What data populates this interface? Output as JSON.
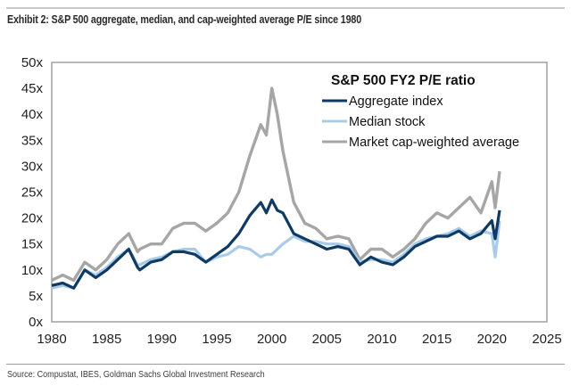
{
  "header": {
    "title": "Exhibit 2: S&P 500 aggregate, median, and cap-weighted average P/E since 1980"
  },
  "footer": {
    "source": "Source: Compustat, IBES, Goldman Sachs Global Investment Research"
  },
  "chart_data": {
    "type": "line",
    "title": "S&P 500 FY2 P/E ratio",
    "xlabel": "",
    "ylabel": "",
    "xlim": [
      1980,
      2025
    ],
    "ylim": [
      0,
      50
    ],
    "x_ticks": [
      1980,
      1985,
      1990,
      1995,
      2000,
      2005,
      2010,
      2015,
      2020,
      2025
    ],
    "x_tick_labels": [
      "1980",
      "1985",
      "1990",
      "1995",
      "2000",
      "2005",
      "2010",
      "2015",
      "2020",
      "2025"
    ],
    "y_ticks": [
      0,
      5,
      10,
      15,
      20,
      25,
      30,
      35,
      40,
      45,
      50
    ],
    "y_tick_labels": [
      "0x",
      "5x",
      "10x",
      "15x",
      "20x",
      "25x",
      "30x",
      "35x",
      "40x",
      "45x",
      "50x"
    ],
    "grid": false,
    "legend_position": "top-right",
    "x": [
      1980,
      1981,
      1982,
      1983,
      1984,
      1985,
      1986,
      1987,
      1987.8,
      1988,
      1989,
      1990,
      1991,
      1992,
      1993,
      1994,
      1995,
      1996,
      1997,
      1998,
      1999,
      1999.5,
      2000,
      2000.5,
      2001,
      2002,
      2003,
      2004,
      2005,
      2006,
      2007,
      2008,
      2009,
      2010,
      2011,
      2012,
      2013,
      2014,
      2015,
      2016,
      2017,
      2018,
      2019,
      2020,
      2020.3,
      2020.7
    ],
    "series": [
      {
        "name": "Aggregate index",
        "color": "#0f3a63",
        "values": [
          7.0,
          7.5,
          6.5,
          10.0,
          8.5,
          10.0,
          12.0,
          14.0,
          10.5,
          10.0,
          11.5,
          12.0,
          13.5,
          13.5,
          13.0,
          11.5,
          13.0,
          14.5,
          17.0,
          20.5,
          23.0,
          21.0,
          23.5,
          21.5,
          21.0,
          17.0,
          16.0,
          15.0,
          14.0,
          14.5,
          14.0,
          11.0,
          12.5,
          11.5,
          11.0,
          12.5,
          14.5,
          15.5,
          16.5,
          16.5,
          17.5,
          16.0,
          17.0,
          19.5,
          16.0,
          21.5
        ]
      },
      {
        "name": "Median stock",
        "color": "#a9cbea",
        "values": [
          6.5,
          7.0,
          6.5,
          10.0,
          9.0,
          10.5,
          12.5,
          14.0,
          11.0,
          11.0,
          12.0,
          12.5,
          13.5,
          14.0,
          14.0,
          11.5,
          12.5,
          13.0,
          14.5,
          14.0,
          12.5,
          13.0,
          13.0,
          14.0,
          15.0,
          16.5,
          15.5,
          15.5,
          15.0,
          15.0,
          14.5,
          11.5,
          12.0,
          12.0,
          11.5,
          13.0,
          15.0,
          16.0,
          16.5,
          17.0,
          18.0,
          16.5,
          17.5,
          17.0,
          12.5,
          19.5
        ]
      },
      {
        "name": "Market cap-weighted average",
        "color": "#a6a6a6",
        "values": [
          8.0,
          9.0,
          8.0,
          11.5,
          10.0,
          12.0,
          15.0,
          17.0,
          13.5,
          14.0,
          15.0,
          15.0,
          18.0,
          19.0,
          19.0,
          17.5,
          19.0,
          21.0,
          25.0,
          32.0,
          38.0,
          36.0,
          45.0,
          40.0,
          33.0,
          23.0,
          19.0,
          18.0,
          16.0,
          16.5,
          16.0,
          12.0,
          14.0,
          14.0,
          12.5,
          14.0,
          16.0,
          19.0,
          21.0,
          20.0,
          22.0,
          24.0,
          21.0,
          27.0,
          22.0,
          29.0
        ]
      }
    ]
  }
}
